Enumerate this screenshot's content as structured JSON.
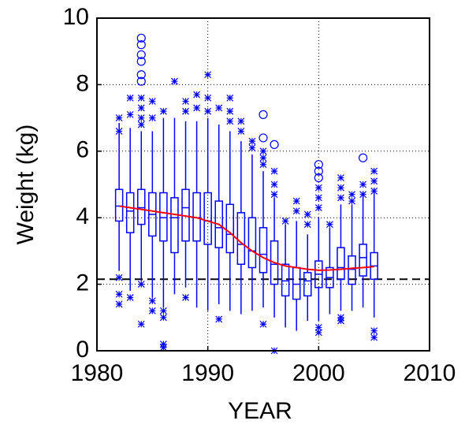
{
  "chart_data": {
    "type": "box",
    "x_label": "YEAR",
    "y_label": "Weight (kg)",
    "xlim": [
      1980,
      2010
    ],
    "xticks": [
      1980,
      1990,
      2000,
      2010
    ],
    "ylim": [
      0,
      10
    ],
    "yticks": [
      0,
      2,
      4,
      6,
      8,
      10
    ],
    "grid": true,
    "color": "#0000ff",
    "trend_color": "#ff0000",
    "reference_color": "#000000",
    "reference_line": 2.15,
    "boxes": [
      {
        "x": 1982,
        "low": 2.4,
        "q1": 3.9,
        "median": 4.35,
        "q3": 4.85,
        "high": 6.85,
        "outliers": [
          7.0,
          6.6,
          2.2,
          1.7,
          1.4
        ],
        "far_outliers": []
      },
      {
        "x": 1983,
        "low": 1.8,
        "q1": 3.55,
        "median": 4.2,
        "q3": 4.75,
        "high": 6.7,
        "outliers": [
          7.6,
          7.1,
          1.6
        ],
        "far_outliers": []
      },
      {
        "x": 1984,
        "low": 2.1,
        "q1": 3.8,
        "median": 4.3,
        "q3": 4.85,
        "high": 6.6,
        "outliers": [
          7.6,
          7.3,
          7.0,
          6.8,
          2.0,
          0.8
        ],
        "far_outliers": [
          9.4,
          9.2,
          8.9,
          8.7,
          8.3,
          8.1
        ]
      },
      {
        "x": 1985,
        "low": 1.6,
        "q1": 3.45,
        "median": 4.1,
        "q3": 4.75,
        "high": 6.6,
        "outliers": [
          7.5,
          7.0,
          1.5,
          1.2
        ],
        "far_outliers": []
      },
      {
        "x": 1986,
        "low": 1.3,
        "q1": 3.3,
        "median": 4.0,
        "q3": 4.75,
        "high": 7.0,
        "outliers": [
          7.2,
          1.2,
          1.0,
          0.2,
          0.1
        ],
        "far_outliers": []
      },
      {
        "x": 1987,
        "low": 1.7,
        "q1": 2.95,
        "median": 4.0,
        "q3": 4.6,
        "high": 7.0,
        "outliers": [
          8.1
        ],
        "far_outliers": []
      },
      {
        "x": 1988,
        "low": 1.9,
        "q1": 3.3,
        "median": 4.3,
        "q3": 4.85,
        "high": 6.9,
        "outliers": [
          7.5,
          7.2,
          1.6
        ],
        "far_outliers": []
      },
      {
        "x": 1989,
        "low": 1.3,
        "q1": 3.3,
        "median": 4.0,
        "q3": 4.75,
        "high": 6.9,
        "outliers": [
          7.7,
          7.3
        ],
        "far_outliers": []
      },
      {
        "x": 1990,
        "low": 1.2,
        "q1": 3.2,
        "median": 3.9,
        "q3": 4.75,
        "high": 7.0,
        "outliers": [
          8.3,
          7.6,
          7.2
        ],
        "far_outliers": []
      },
      {
        "x": 1991,
        "low": 1.4,
        "q1": 3.1,
        "median": 3.7,
        "q3": 4.5,
        "high": 6.8,
        "outliers": [
          7.3,
          0.95
        ],
        "far_outliers": []
      },
      {
        "x": 1992,
        "low": 1.2,
        "q1": 2.95,
        "median": 3.5,
        "q3": 4.4,
        "high": 6.6,
        "outliers": [
          7.6,
          7.2,
          6.9
        ],
        "far_outliers": []
      },
      {
        "x": 1993,
        "low": 1.1,
        "q1": 2.6,
        "median": 3.2,
        "q3": 4.15,
        "high": 6.3,
        "outliers": [
          6.9,
          6.6
        ],
        "far_outliers": []
      },
      {
        "x": 1994,
        "low": 1.2,
        "q1": 2.5,
        "median": 3.0,
        "q3": 4.0,
        "high": 5.9,
        "outliers": [
          6.3,
          6.1
        ],
        "far_outliers": []
      },
      {
        "x": 1995,
        "low": 1.3,
        "q1": 2.35,
        "median": 2.9,
        "q3": 3.7,
        "high": 5.4,
        "outliers": [
          6.0,
          5.8,
          5.6,
          0.8
        ],
        "far_outliers": [
          7.1,
          6.4
        ]
      },
      {
        "x": 1996,
        "low": 1.0,
        "q1": 2.0,
        "median": 2.6,
        "q3": 3.3,
        "high": 4.6,
        "outliers": [
          5.4,
          5.0,
          4.7,
          0.0
        ],
        "far_outliers": [
          6.2
        ]
      },
      {
        "x": 1997,
        "low": 0.7,
        "q1": 1.65,
        "median": 2.1,
        "q3": 2.6,
        "high": 3.8,
        "outliers": [
          3.9
        ],
        "far_outliers": []
      },
      {
        "x": 1998,
        "low": 0.6,
        "q1": 1.55,
        "median": 2.0,
        "q3": 2.5,
        "high": 3.9,
        "outliers": [
          4.5,
          4.2
        ],
        "far_outliers": []
      },
      {
        "x": 1999,
        "low": 0.9,
        "q1": 1.65,
        "median": 2.1,
        "q3": 2.35,
        "high": 3.5,
        "outliers": [
          4.1,
          3.8
        ],
        "far_outliers": []
      },
      {
        "x": 2000,
        "low": 0.9,
        "q1": 1.9,
        "median": 2.3,
        "q3": 2.7,
        "high": 4.0,
        "outliers": [
          4.9,
          4.6,
          4.3,
          0.7,
          0.55
        ],
        "far_outliers": [
          5.6,
          5.4,
          5.2
        ]
      },
      {
        "x": 2001,
        "low": 1.1,
        "q1": 1.9,
        "median": 2.2,
        "q3": 2.5,
        "high": 3.7,
        "outliers": [
          3.8
        ],
        "far_outliers": []
      },
      {
        "x": 2002,
        "low": 1.2,
        "q1": 2.15,
        "median": 2.5,
        "q3": 3.1,
        "high": 4.4,
        "outliers": [
          5.2,
          4.9,
          4.6,
          1.0,
          0.9
        ],
        "far_outliers": []
      },
      {
        "x": 2003,
        "low": 1.2,
        "q1": 2.0,
        "median": 2.45,
        "q3": 2.85,
        "high": 4.4,
        "outliers": [
          4.7,
          4.5
        ],
        "far_outliers": []
      },
      {
        "x": 2004,
        "low": 1.3,
        "q1": 2.25,
        "median": 2.8,
        "q3": 3.2,
        "high": 4.8,
        "outliers": [
          5.0,
          4.7
        ],
        "far_outliers": [
          5.8
        ]
      },
      {
        "x": 2005,
        "low": 1.0,
        "q1": 2.15,
        "median": 2.55,
        "q3": 2.95,
        "high": 4.9,
        "outliers": [
          5.4,
          5.1,
          4.8,
          0.6,
          0.4
        ],
        "far_outliers": []
      }
    ],
    "trend": {
      "x": [
        1982,
        1983,
        1984,
        1985,
        1986,
        1987,
        1988,
        1989,
        1990,
        1991,
        1992,
        1993,
        1994,
        1995,
        1996,
        1997,
        1998,
        1999,
        2000,
        2001,
        2002,
        2003,
        2004,
        2005
      ],
      "values": [
        4.35,
        4.3,
        4.25,
        4.2,
        4.15,
        4.1,
        4.05,
        4.0,
        3.9,
        3.8,
        3.55,
        3.25,
        3.0,
        2.8,
        2.65,
        2.55,
        2.5,
        2.45,
        2.42,
        2.43,
        2.45,
        2.48,
        2.5,
        2.53
      ]
    }
  }
}
